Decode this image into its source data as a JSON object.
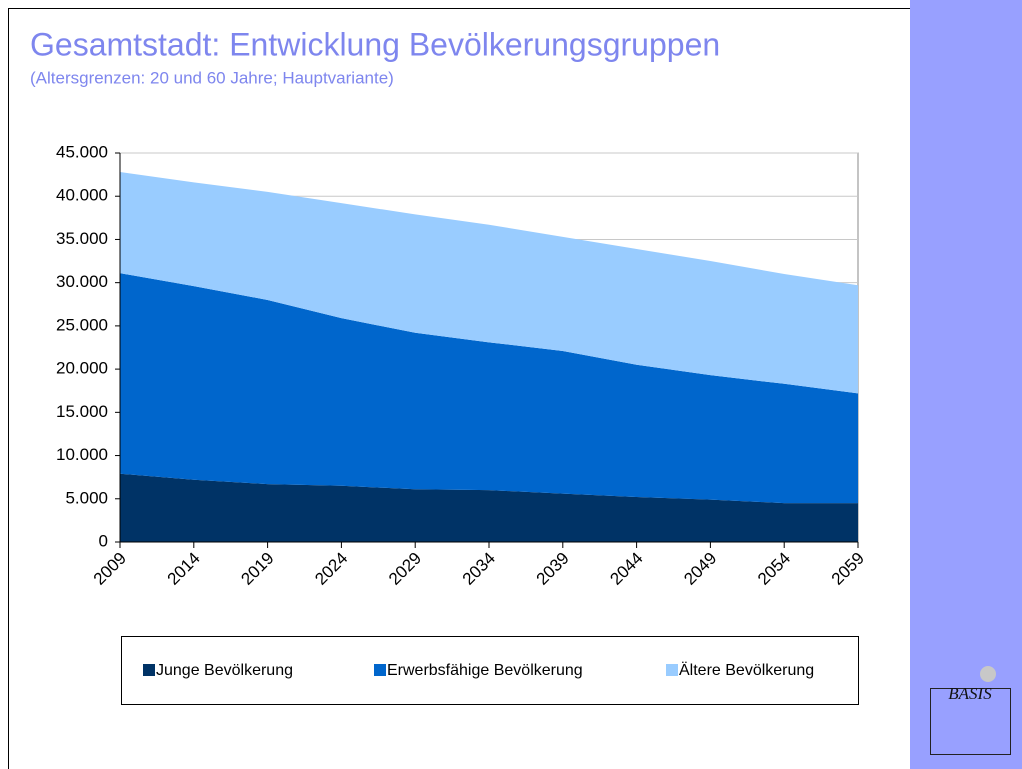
{
  "chart_data": {
    "type": "stacked_area",
    "title": "Gesamtstadt: Entwicklung Bevölkerungsgruppen",
    "subtitle": "(Altersgrenzen: 20 und 60 Jahre; Hauptvariante)",
    "categories": [
      "2009",
      "2014",
      "2019",
      "2024",
      "2029",
      "2034",
      "2039",
      "2044",
      "2049",
      "2054",
      "2059"
    ],
    "series": [
      {
        "name": "Junge Bevölkerung",
        "color": "#003366",
        "values": [
          7900,
          7200,
          6700,
          6500,
          6100,
          6000,
          5600,
          5200,
          4900,
          4500,
          4500
        ]
      },
      {
        "name": "Erwerbsfähige Bevölkerung",
        "color": "#0066cc",
        "values": [
          23200,
          22400,
          21300,
          19400,
          18100,
          17100,
          16500,
          15300,
          14400,
          13800,
          12700
        ]
      },
      {
        "name": "Ältere Bevölkerung",
        "color": "#99ccff",
        "values": [
          11700,
          12000,
          12500,
          13300,
          13700,
          13600,
          13200,
          13400,
          13200,
          12700,
          12500
        ]
      }
    ],
    "ylim": [
      0,
      45000
    ],
    "yticks": [
      0,
      {
        "value": 5000,
        "label": "5.000"
      },
      {
        "value": 10000,
        "label": "10.000"
      },
      {
        "value": 15000,
        "label": "15.000"
      },
      {
        "value": 20000,
        "label": "20.000"
      },
      {
        "value": 25000,
        "label": "25.000"
      },
      {
        "value": 30000,
        "label": "30.000"
      },
      {
        "value": 35000,
        "label": "35.000"
      },
      {
        "value": 40000,
        "label": "40.000"
      },
      {
        "value": 45000,
        "label": "45.000"
      }
    ],
    "grid": true,
    "legend": "bottom"
  },
  "logo": "BASIS"
}
